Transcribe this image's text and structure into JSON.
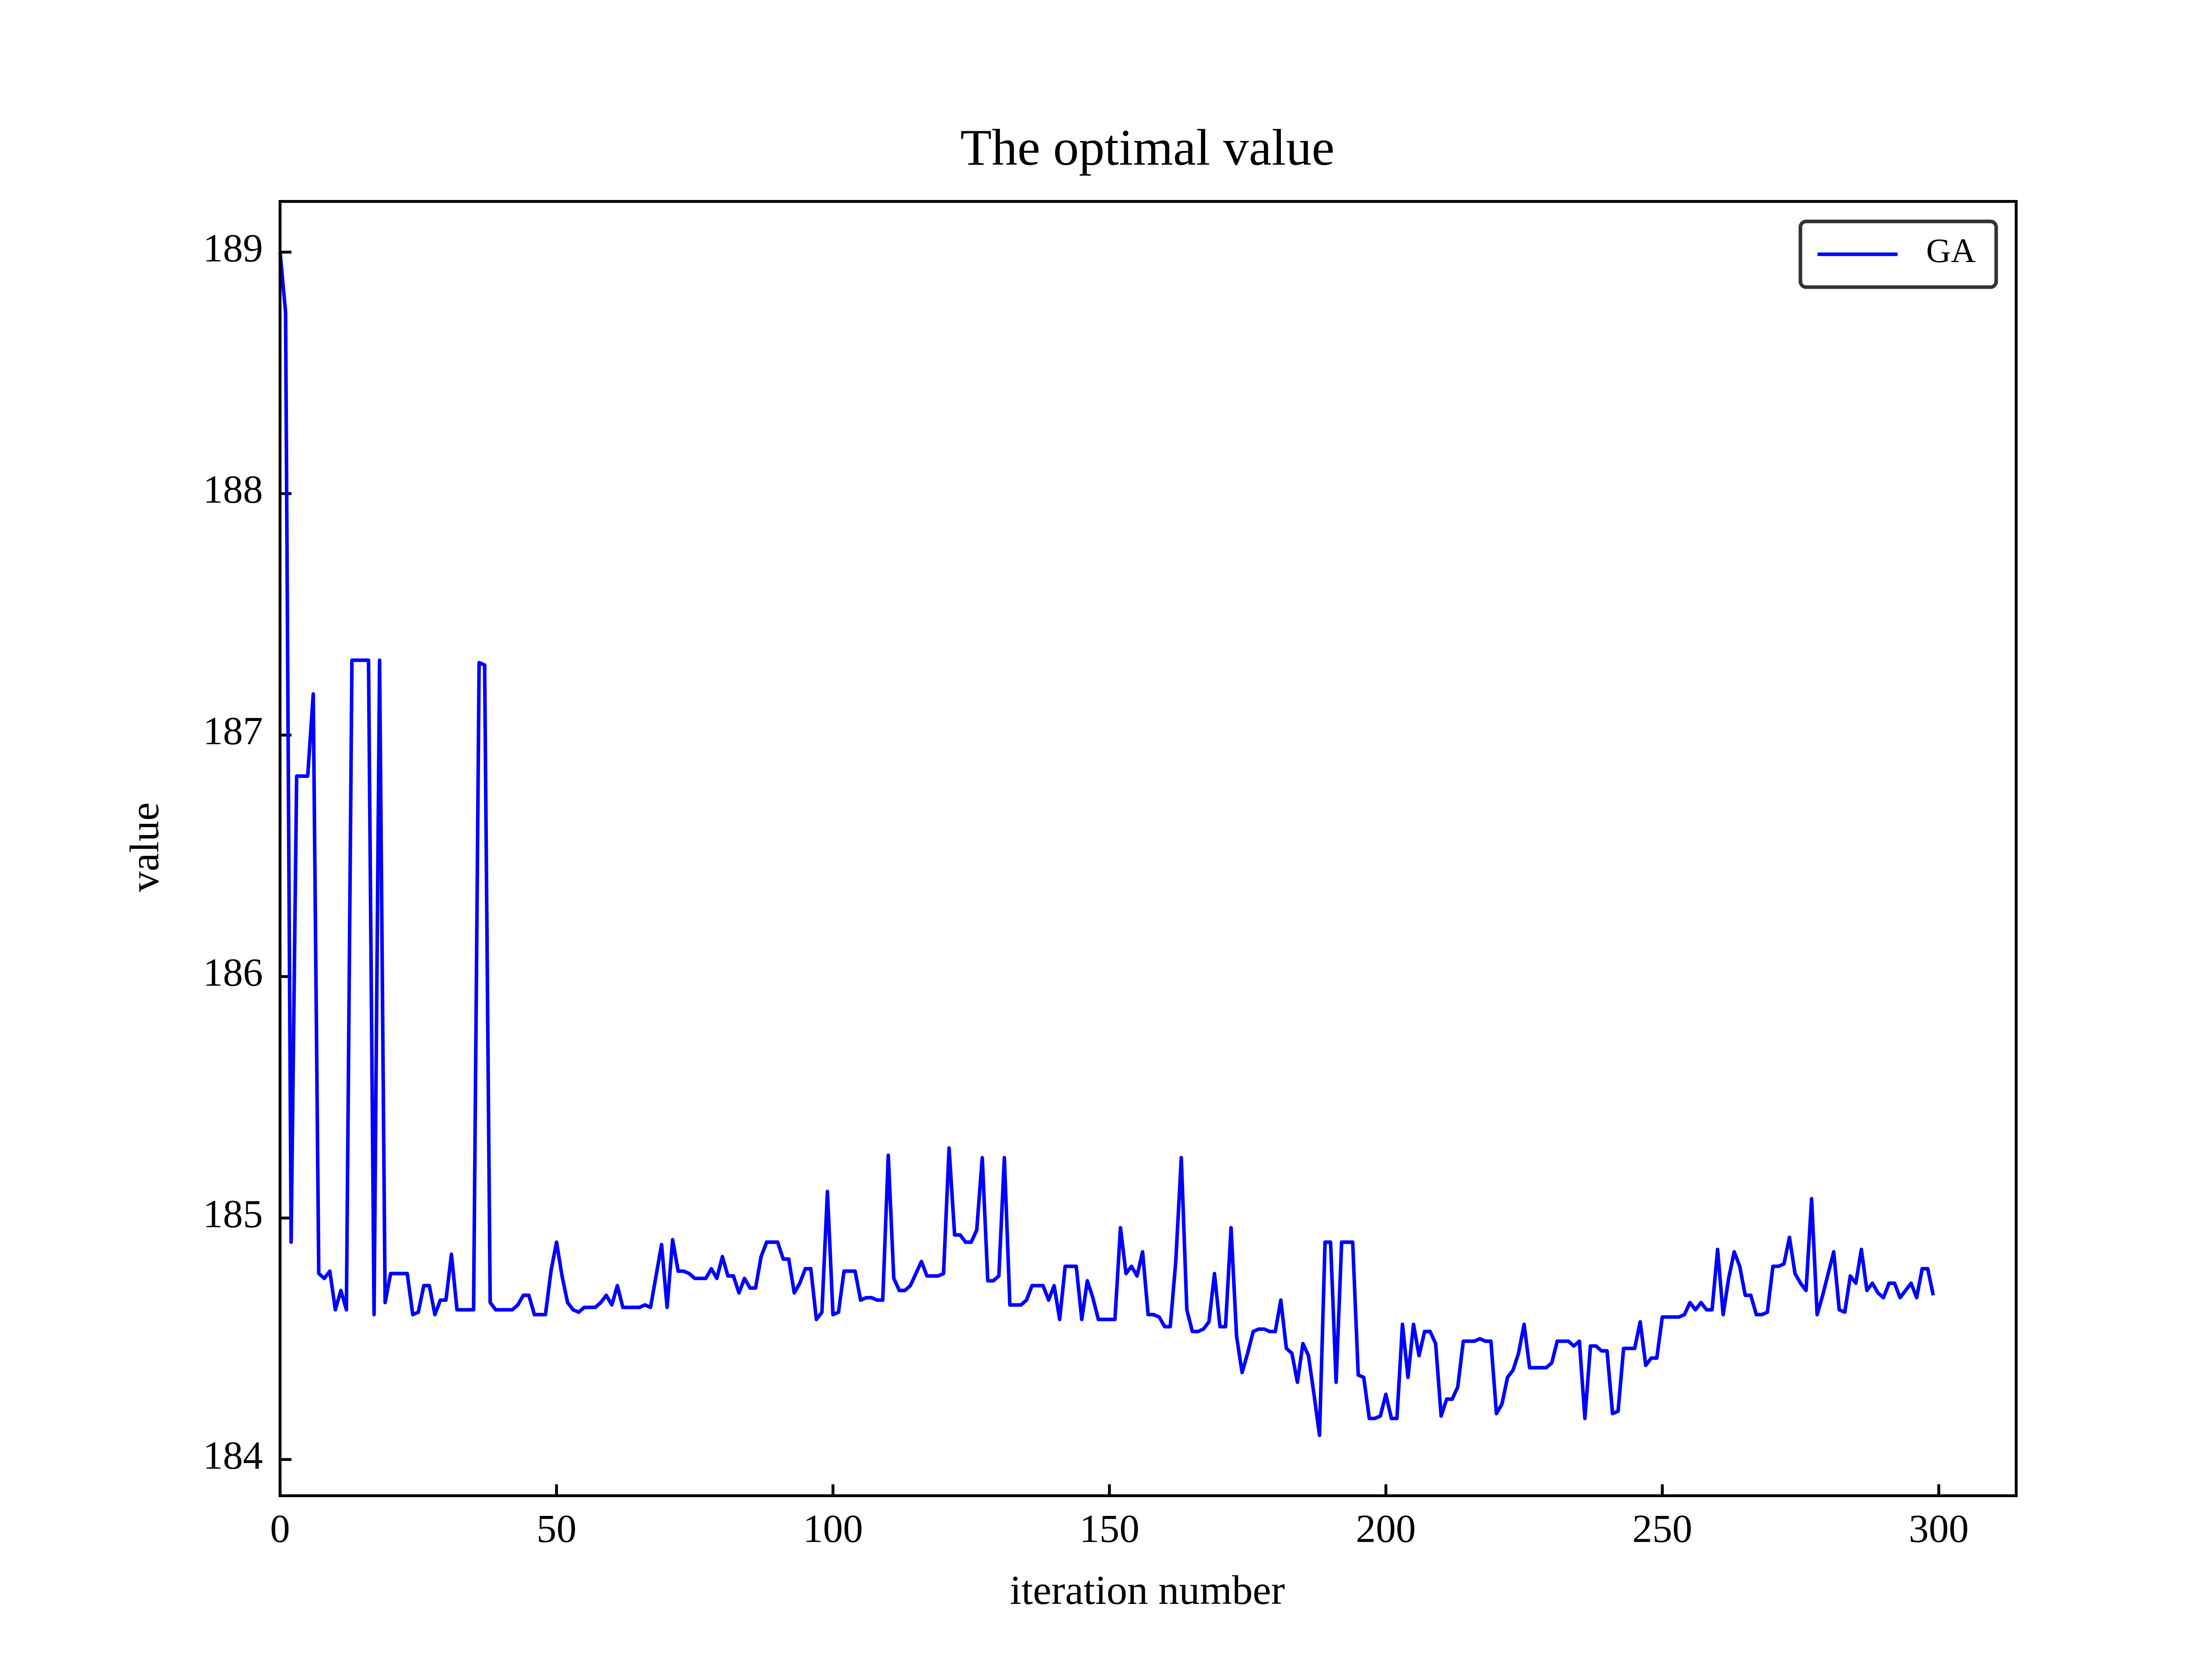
{
  "chart_data": {
    "type": "line",
    "title": "The optimal value",
    "xlabel": "iteration number",
    "ylabel": "value",
    "x": [
      0,
      1,
      2,
      3,
      4,
      5,
      6,
      7,
      8,
      9,
      10,
      11,
      12,
      13,
      14,
      15,
      16,
      17,
      18,
      19,
      20,
      21,
      22,
      23,
      24,
      25,
      26,
      27,
      28,
      29,
      30,
      31,
      32,
      33,
      34,
      35,
      36,
      37,
      38,
      39,
      40,
      41,
      42,
      43,
      44,
      45,
      46,
      47,
      48,
      49,
      50,
      51,
      52,
      53,
      54,
      55,
      56,
      57,
      58,
      59,
      60,
      61,
      62,
      63,
      64,
      65,
      66,
      67,
      68,
      69,
      70,
      71,
      72,
      73,
      74,
      75,
      76,
      77,
      78,
      79,
      80,
      81,
      82,
      83,
      84,
      85,
      86,
      87,
      88,
      89,
      90,
      91,
      92,
      93,
      94,
      95,
      96,
      97,
      98,
      99,
      100,
      101,
      102,
      103,
      104,
      105,
      106,
      107,
      108,
      109,
      110,
      111,
      112,
      113,
      114,
      115,
      116,
      117,
      118,
      119,
      120,
      121,
      122,
      123,
      124,
      125,
      126,
      127,
      128,
      129,
      130,
      131,
      132,
      133,
      134,
      135,
      136,
      137,
      138,
      139,
      140,
      141,
      142,
      143,
      144,
      145,
      146,
      147,
      148,
      149,
      150,
      151,
      152,
      153,
      154,
      155,
      156,
      157,
      158,
      159,
      160,
      161,
      162,
      163,
      164,
      165,
      166,
      167,
      168,
      169,
      170,
      171,
      172,
      173,
      174,
      175,
      176,
      177,
      178,
      179,
      180,
      181,
      182,
      183,
      184,
      185,
      186,
      187,
      188,
      189,
      190,
      191,
      192,
      193,
      194,
      195,
      196,
      197,
      198,
      199,
      200,
      201,
      202,
      203,
      204,
      205,
      206,
      207,
      208,
      209,
      210,
      211,
      212,
      213,
      214,
      215,
      216,
      217,
      218,
      219,
      220,
      221,
      222,
      223,
      224,
      225,
      226,
      227,
      228,
      229,
      230,
      231,
      232,
      233,
      234,
      235,
      236,
      237,
      238,
      239,
      240,
      241,
      242,
      243,
      244,
      245,
      246,
      247,
      248,
      249,
      250,
      251,
      252,
      253,
      254,
      255,
      256,
      257,
      258,
      259,
      260,
      261,
      262,
      263,
      264,
      265,
      266,
      267,
      268,
      269,
      270,
      271,
      272,
      273,
      274,
      275,
      276,
      277,
      278,
      279,
      280,
      281,
      282,
      283,
      284,
      285,
      286,
      287,
      288,
      289,
      290,
      291,
      292,
      293,
      294,
      295,
      296,
      297,
      298,
      299
    ],
    "series": [
      {
        "name": "GA",
        "color": "#0000ff",
        "values": [
          189.0,
          188.75,
          184.9,
          186.83,
          186.83,
          186.83,
          187.17,
          184.77,
          184.75,
          184.78,
          184.62,
          184.7,
          184.62,
          187.31,
          187.31,
          187.31,
          187.31,
          184.6,
          187.31,
          184.65,
          184.77,
          184.77,
          184.77,
          184.77,
          184.6,
          184.61,
          184.72,
          184.72,
          184.6,
          184.66,
          184.66,
          184.85,
          184.62,
          184.62,
          184.62,
          184.62,
          187.3,
          187.29,
          184.65,
          184.62,
          184.62,
          184.62,
          184.62,
          184.64,
          184.68,
          184.68,
          184.6,
          184.6,
          184.6,
          184.78,
          184.9,
          184.76,
          184.65,
          184.62,
          184.61,
          184.63,
          184.63,
          184.63,
          184.65,
          184.68,
          184.64,
          184.72,
          184.63,
          184.63,
          184.63,
          184.63,
          184.64,
          184.63,
          184.76,
          184.89,
          184.63,
          184.91,
          184.78,
          184.78,
          184.77,
          184.75,
          184.75,
          184.75,
          184.79,
          184.75,
          184.84,
          184.76,
          184.76,
          184.69,
          184.75,
          184.71,
          184.71,
          184.84,
          184.9,
          184.9,
          184.9,
          184.83,
          184.83,
          184.69,
          184.73,
          184.79,
          184.79,
          184.58,
          184.61,
          185.11,
          184.6,
          184.61,
          184.78,
          184.78,
          184.78,
          184.66,
          184.67,
          184.67,
          184.66,
          184.66,
          185.26,
          184.75,
          184.7,
          184.7,
          184.72,
          184.77,
          184.82,
          184.76,
          184.76,
          184.76,
          184.77,
          185.29,
          184.93,
          184.93,
          184.9,
          184.9,
          184.95,
          185.25,
          184.74,
          184.74,
          184.76,
          185.25,
          184.64,
          184.64,
          184.64,
          184.66,
          184.72,
          184.72,
          184.72,
          184.66,
          184.72,
          184.58,
          184.8,
          184.8,
          184.8,
          184.58,
          184.74,
          184.67,
          184.58,
          184.58,
          184.58,
          184.58,
          184.96,
          184.77,
          184.8,
          184.76,
          184.86,
          184.6,
          184.6,
          184.59,
          184.55,
          184.55,
          184.82,
          185.25,
          184.62,
          184.53,
          184.53,
          184.54,
          184.57,
          184.77,
          184.55,
          184.55,
          184.96,
          184.51,
          184.36,
          184.44,
          184.53,
          184.54,
          184.54,
          184.53,
          184.53,
          184.66,
          184.46,
          184.44,
          184.32,
          184.48,
          184.43,
          184.27,
          184.1,
          184.9,
          184.9,
          184.32,
          184.9,
          184.9,
          184.9,
          184.35,
          184.34,
          184.17,
          184.17,
          184.18,
          184.27,
          184.17,
          184.17,
          184.56,
          184.34,
          184.56,
          184.43,
          184.53,
          184.53,
          184.48,
          184.18,
          184.25,
          184.25,
          184.3,
          184.49,
          184.49,
          184.49,
          184.5,
          184.49,
          184.49,
          184.19,
          184.23,
          184.34,
          184.37,
          184.44,
          184.56,
          184.38,
          184.38,
          184.38,
          184.38,
          184.4,
          184.49,
          184.49,
          184.49,
          184.47,
          184.49,
          184.17,
          184.47,
          184.47,
          184.45,
          184.45,
          184.19,
          184.2,
          184.46,
          184.46,
          184.46,
          184.57,
          184.39,
          184.42,
          184.42,
          184.59,
          184.59,
          184.59,
          184.59,
          184.6,
          184.65,
          184.62,
          184.65,
          184.62,
          184.62,
          184.87,
          184.6,
          184.75,
          184.86,
          184.8,
          184.68,
          184.68,
          184.6,
          184.6,
          184.61,
          184.8,
          184.8,
          184.81,
          184.92,
          184.77,
          184.73,
          184.7,
          185.08,
          184.6,
          184.68,
          184.77,
          184.86,
          184.62,
          184.61,
          184.76,
          184.73,
          184.87,
          184.7,
          184.73,
          184.69,
          184.67,
          184.73,
          184.73,
          184.67,
          184.7,
          184.73,
          184.67,
          184.79,
          184.79,
          184.68
        ]
      }
    ],
    "xlim": [
      0,
      314
    ],
    "ylim": [
      183.85,
      189.21
    ],
    "xticks": [
      0,
      50,
      100,
      150,
      200,
      250,
      300
    ],
    "yticks": [
      184,
      185,
      186,
      187,
      188,
      189
    ],
    "legend": "upper right"
  }
}
